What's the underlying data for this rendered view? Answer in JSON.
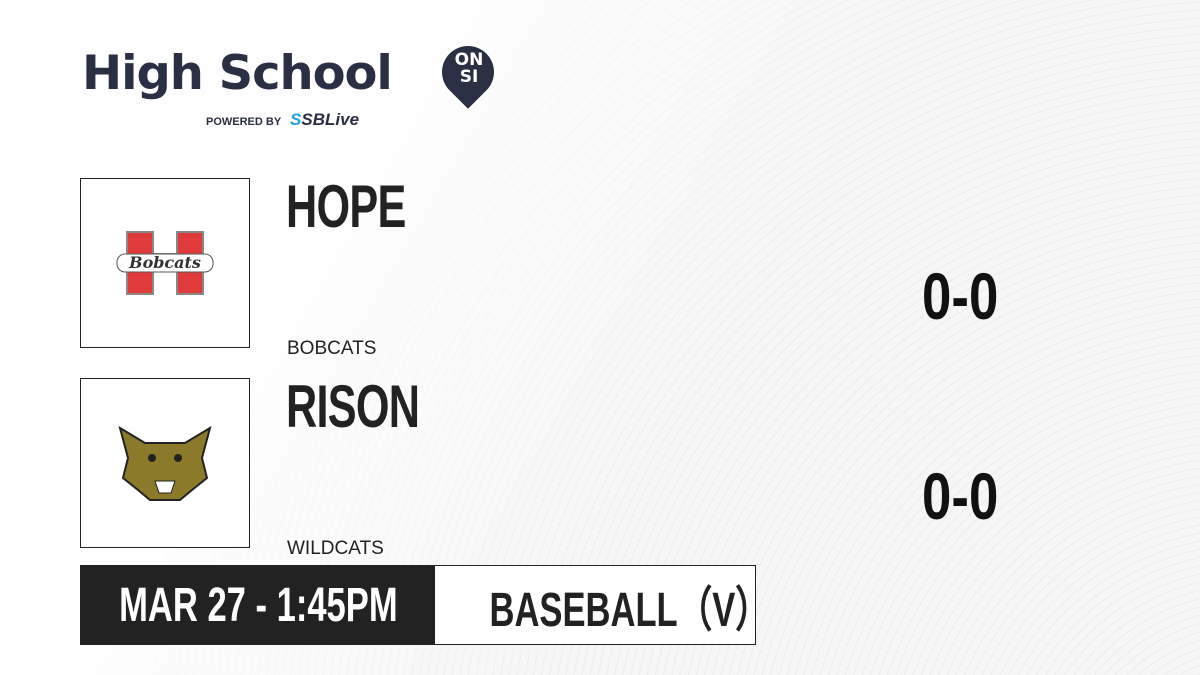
{
  "brand": {
    "title": "High School",
    "badge": "ON SI",
    "powered_by": "POWERED BY",
    "partner": "SBLive"
  },
  "teams": [
    {
      "name": "HOPE",
      "mascot": "BOBCATS",
      "score": "0-0",
      "logo_text": "Bobcats",
      "logo_letter": "H",
      "logo_color": "#e03a3a"
    },
    {
      "name": "RISON",
      "mascot": "WILDCATS",
      "score": "0-0",
      "logo_icon": "wildcat-head-icon",
      "logo_color": "#8a7a2a"
    }
  ],
  "game": {
    "datetime": "MAR 27 - 1:45PM",
    "sport": "BASEBALL（V）"
  }
}
